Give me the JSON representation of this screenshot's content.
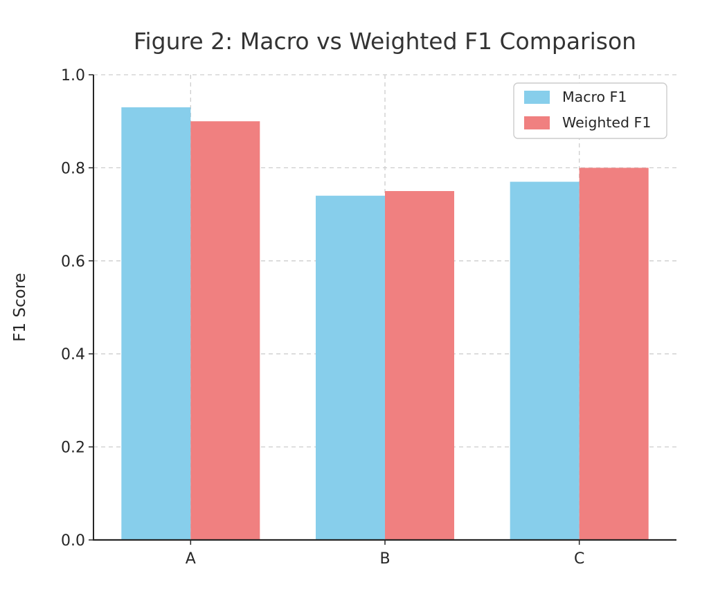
{
  "chart_data": {
    "type": "bar",
    "title": "Figure 2: Macro vs Weighted F1 Comparison",
    "categories": [
      "A",
      "B",
      "C"
    ],
    "series": [
      {
        "name": "Macro F1",
        "color": "#87CEEB",
        "values": [
          0.93,
          0.74,
          0.77
        ]
      },
      {
        "name": "Weighted F1",
        "color": "#F08080",
        "values": [
          0.9,
          0.75,
          0.8
        ]
      }
    ],
    "xlabel": "",
    "ylabel": "F1 Score",
    "ylim": [
      0.0,
      1.0
    ],
    "yticks": [
      0.0,
      0.2,
      0.4,
      0.6,
      0.8,
      1.0
    ],
    "ytick_labels": [
      "0.0",
      "0.2",
      "0.4",
      "0.6",
      "0.8",
      "1.0"
    ],
    "grid": true,
    "grid_style": "dashed",
    "legend_position": "upper right"
  },
  "colors": {
    "background": "#FFFFFF",
    "grid": "#CDCDCD",
    "axis": "#262626",
    "tick_text": "#262626",
    "title_text": "#333333",
    "legend_border": "#CCCCCC",
    "legend_background": "#FFFFFF",
    "macro_f1": "#87CEEB",
    "weighted_f1": "#F08080"
  }
}
